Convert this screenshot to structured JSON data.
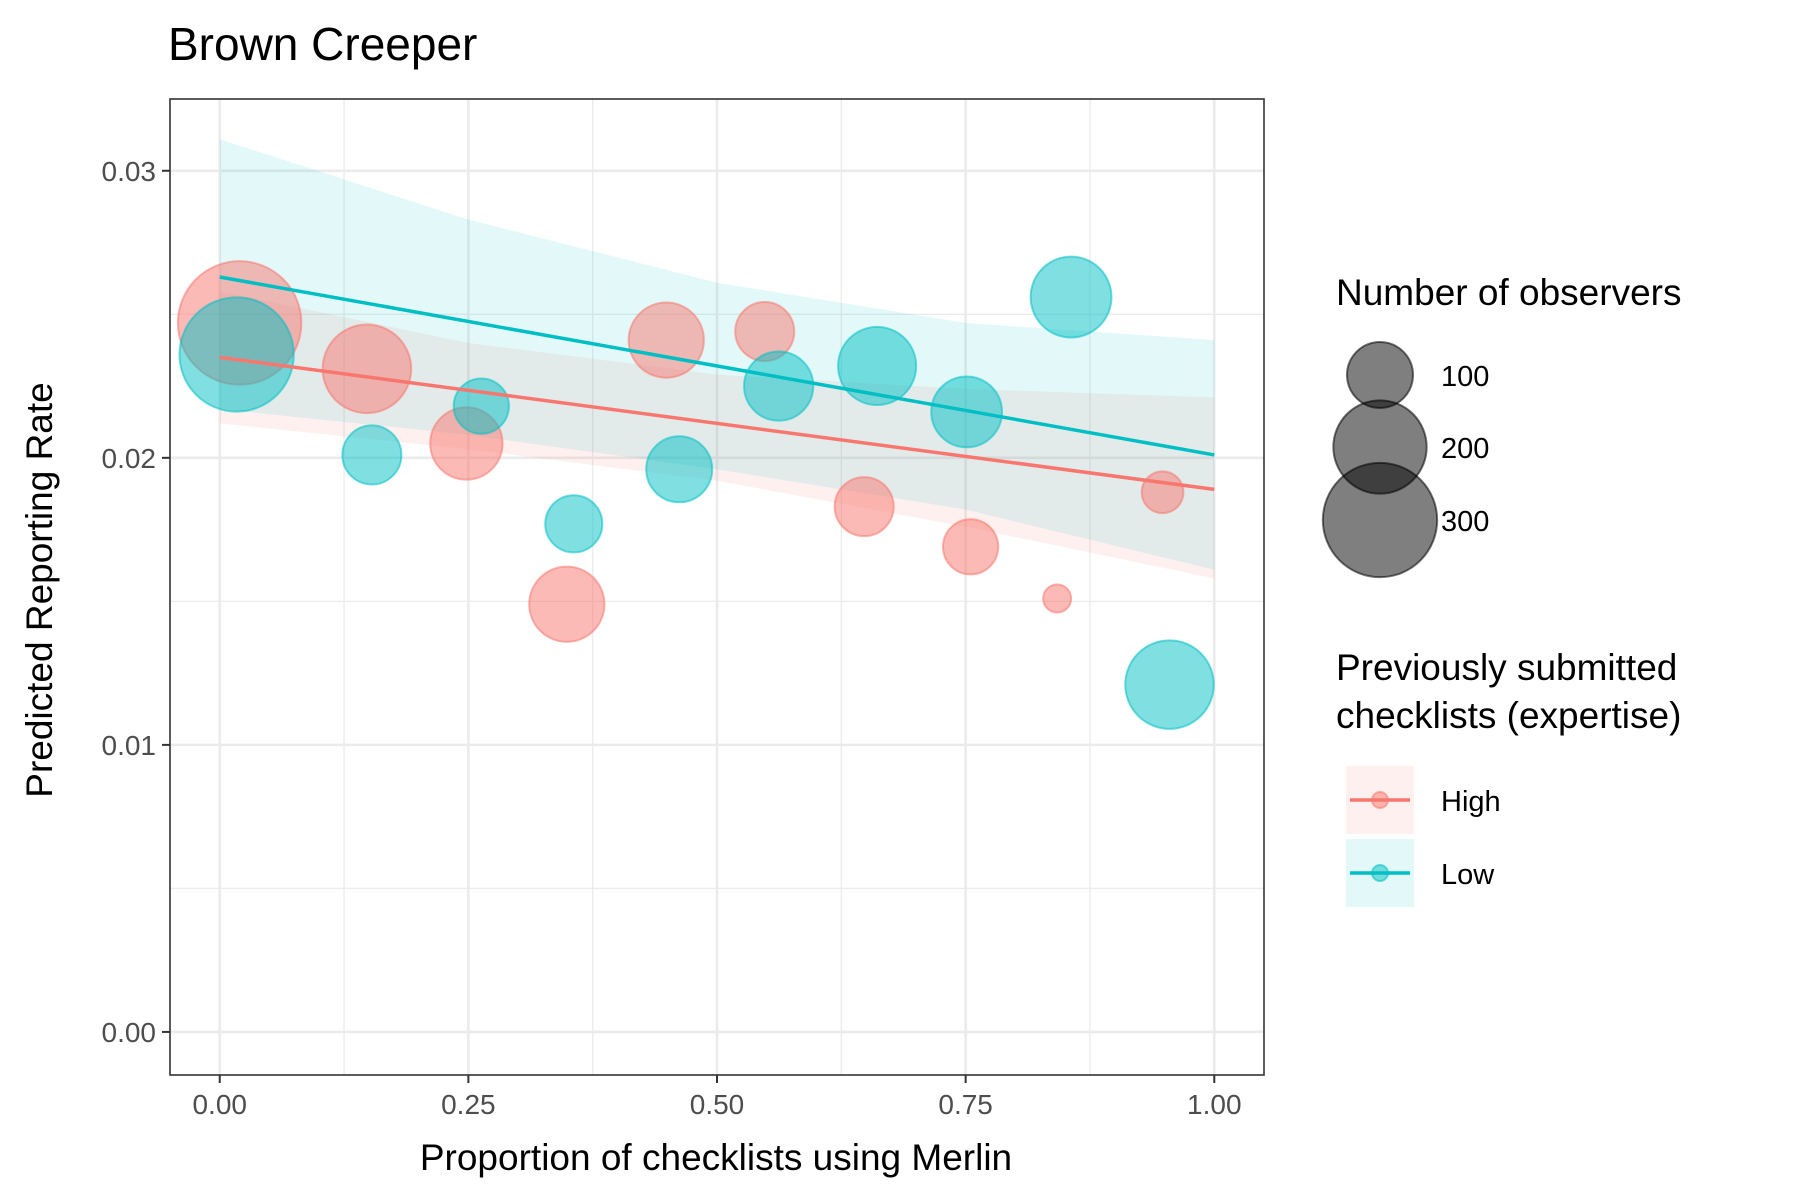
{
  "chart_data": {
    "type": "scatter",
    "title": "Brown Creeper",
    "xlabel": "Proportion of checklists using Merlin",
    "ylabel": "Predicted Reporting Rate",
    "xlim": [
      -0.05,
      1.05
    ],
    "ylim": [
      -0.0015,
      0.0325
    ],
    "x_ticks": [
      0.0,
      0.25,
      0.5,
      0.75,
      1.0
    ],
    "x_tick_labels": [
      "0.00",
      "0.25",
      "0.50",
      "0.75",
      "1.00"
    ],
    "y_ticks": [
      0.0,
      0.01,
      0.02,
      0.03
    ],
    "y_tick_labels": [
      "0.00",
      "0.01",
      "0.02",
      "0.03"
    ],
    "grid": true,
    "legend_position": "right",
    "size_legend": {
      "title": "Number of observers",
      "entries": [
        {
          "value": 100,
          "label": "100"
        },
        {
          "value": 200,
          "label": "200"
        },
        {
          "value": 300,
          "label": "300"
        }
      ]
    },
    "color_legend": {
      "title_lines": [
        "Previously submitted",
        "checklists (expertise)"
      ]
    },
    "series": [
      {
        "name": "High",
        "color": "#F8766D",
        "fit": {
          "x": [
            0.0,
            1.0
          ],
          "y": [
            0.0235,
            0.0189
          ]
        },
        "ribbon": {
          "x": [
            0.0,
            0.25,
            0.5,
            0.75,
            1.0
          ],
          "lower": [
            0.0212,
            0.0203,
            0.0192,
            0.0176,
            0.0158
          ],
          "upper": [
            0.0258,
            0.024,
            0.0229,
            0.0224,
            0.0221
          ]
        },
        "points": [
          {
            "x": 0.02,
            "y": 0.0247,
            "n": 350
          },
          {
            "x": 0.148,
            "y": 0.0231,
            "n": 180
          },
          {
            "x": 0.248,
            "y": 0.0205,
            "n": 120
          },
          {
            "x": 0.349,
            "y": 0.0149,
            "n": 130
          },
          {
            "x": 0.449,
            "y": 0.0241,
            "n": 130
          },
          {
            "x": 0.548,
            "y": 0.0244,
            "n": 80
          },
          {
            "x": 0.648,
            "y": 0.0183,
            "n": 80
          },
          {
            "x": 0.755,
            "y": 0.0169,
            "n": 70
          },
          {
            "x": 0.842,
            "y": 0.0151,
            "n": 18
          },
          {
            "x": 0.948,
            "y": 0.0188,
            "n": 40
          }
        ]
      },
      {
        "name": "Low",
        "color": "#00BFC4",
        "fit": {
          "x": [
            0.0,
            1.0
          ],
          "y": [
            0.0263,
            0.0201
          ]
        },
        "ribbon": {
          "x": [
            0.0,
            0.25,
            0.5,
            0.75,
            1.0
          ],
          "lower": [
            0.0217,
            0.0208,
            0.0196,
            0.0182,
            0.0161
          ],
          "upper": [
            0.0311,
            0.0283,
            0.0261,
            0.0247,
            0.0241
          ]
        },
        "points": [
          {
            "x": 0.017,
            "y": 0.0236,
            "n": 300
          },
          {
            "x": 0.153,
            "y": 0.0201,
            "n": 80
          },
          {
            "x": 0.263,
            "y": 0.0218,
            "n": 70
          },
          {
            "x": 0.356,
            "y": 0.0177,
            "n": 75
          },
          {
            "x": 0.462,
            "y": 0.0196,
            "n": 100
          },
          {
            "x": 0.562,
            "y": 0.0225,
            "n": 110
          },
          {
            "x": 0.661,
            "y": 0.0232,
            "n": 140
          },
          {
            "x": 0.751,
            "y": 0.0216,
            "n": 115
          },
          {
            "x": 0.856,
            "y": 0.0256,
            "n": 150
          },
          {
            "x": 0.955,
            "y": 0.0121,
            "n": 180
          }
        ]
      }
    ]
  }
}
